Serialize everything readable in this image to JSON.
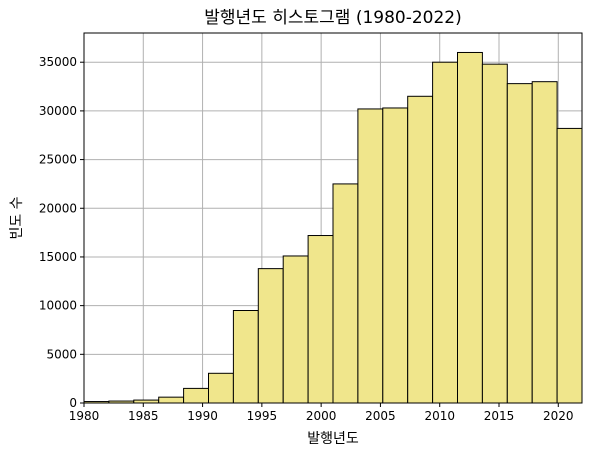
{
  "chart_data": {
    "type": "bar",
    "title": "발행년도 히스토그램 (1980-2022)",
    "xlabel": "발행년도",
    "ylabel": "빈도 수",
    "bin_width": 2.1,
    "bin_edges_start": 1980,
    "bins": [
      {
        "x_start": 1980.0,
        "x_end": 1982.1,
        "value": 150
      },
      {
        "x_start": 1982.1,
        "x_end": 1984.2,
        "value": 200
      },
      {
        "x_start": 1984.2,
        "x_end": 1986.3,
        "value": 300
      },
      {
        "x_start": 1986.3,
        "x_end": 1988.4,
        "value": 600
      },
      {
        "x_start": 1988.4,
        "x_end": 1990.5,
        "value": 1500
      },
      {
        "x_start": 1990.5,
        "x_end": 1992.6,
        "value": 3050
      },
      {
        "x_start": 1992.6,
        "x_end": 1994.7,
        "value": 9500
      },
      {
        "x_start": 1994.7,
        "x_end": 1996.8,
        "value": 13800
      },
      {
        "x_start": 1996.8,
        "x_end": 1998.9,
        "value": 15100
      },
      {
        "x_start": 1998.9,
        "x_end": 2001.0,
        "value": 17200
      },
      {
        "x_start": 2001.0,
        "x_end": 2003.1,
        "value": 22500
      },
      {
        "x_start": 2003.1,
        "x_end": 2005.2,
        "value": 30200
      },
      {
        "x_start": 2005.2,
        "x_end": 2007.3,
        "value": 30300
      },
      {
        "x_start": 2007.3,
        "x_end": 2009.4,
        "value": 31500
      },
      {
        "x_start": 2009.4,
        "x_end": 2011.5,
        "value": 35000
      },
      {
        "x_start": 2011.5,
        "x_end": 2013.6,
        "value": 36000
      },
      {
        "x_start": 2013.6,
        "x_end": 2015.7,
        "value": 34800
      },
      {
        "x_start": 2015.7,
        "x_end": 2017.8,
        "value": 32800
      },
      {
        "x_start": 2017.8,
        "x_end": 2019.9,
        "value": 33000
      },
      {
        "x_start": 2019.9,
        "x_end": 2022.0,
        "value": 28200
      }
    ],
    "xlim": [
      1980,
      2022
    ],
    "ylim": [
      0,
      38000
    ],
    "xticks": [
      1980,
      1985,
      1990,
      1995,
      2000,
      2005,
      2010,
      2015,
      2020
    ],
    "yticks": [
      0,
      5000,
      10000,
      15000,
      20000,
      25000,
      30000,
      35000
    ],
    "grid": true,
    "bar_color": "#F0E68C",
    "bar_edge_color": "#000000",
    "grid_color": "#b0b0b0"
  }
}
